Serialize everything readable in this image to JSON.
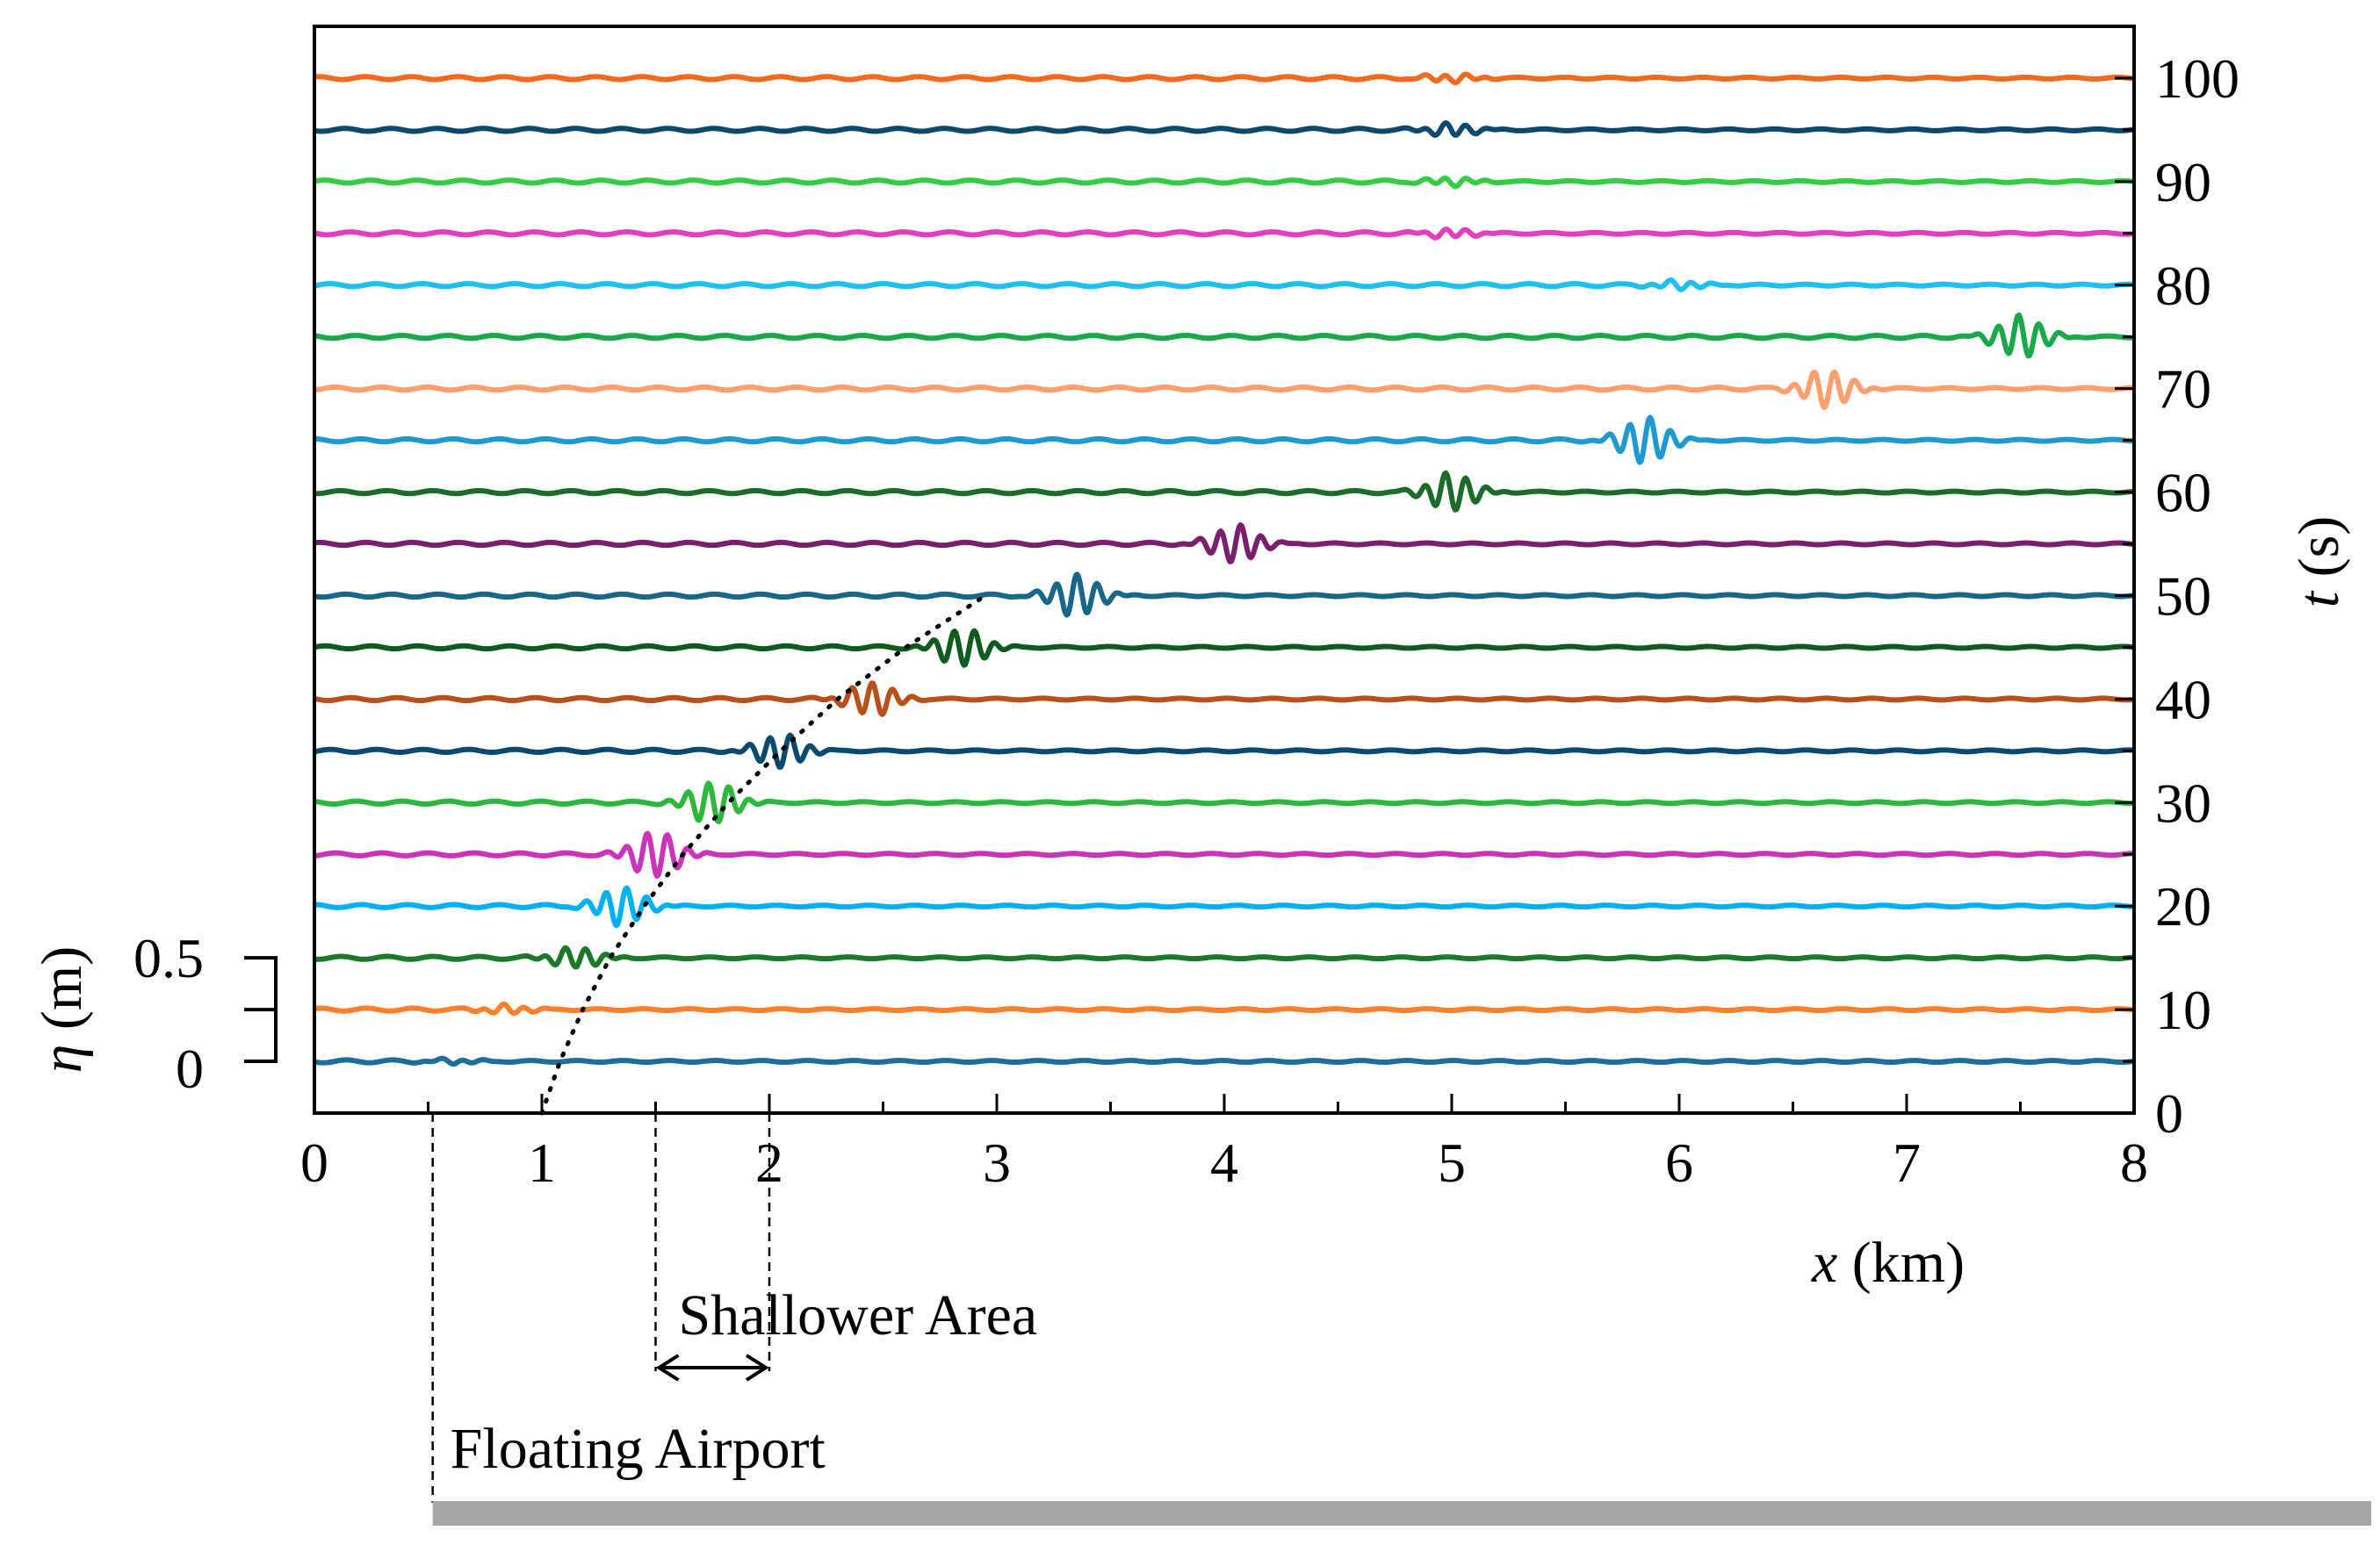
{
  "chart_data": {
    "type": "line",
    "title": "",
    "xlabel_var": "x",
    "xlabel_unit": " (km)",
    "ylabel_right_var": "t",
    "ylabel_right_unit": " (s)",
    "eta_label_var": "η",
    "eta_label_unit": " (m)",
    "xlim": [
      0,
      8
    ],
    "ylim_right": [
      0,
      105
    ],
    "x_ticks": [
      0,
      1,
      2,
      3,
      4,
      5,
      6,
      7,
      8
    ],
    "x_tick_labels": [
      "0",
      "1",
      "2",
      "3",
      "4",
      "5",
      "6",
      "7",
      "8"
    ],
    "right_ticks": [
      0,
      10,
      20,
      30,
      40,
      50,
      60,
      70,
      80,
      90,
      100
    ],
    "right_tick_labels": [
      "0",
      "10",
      "20",
      "30",
      "40",
      "50",
      "60",
      "70",
      "80",
      "90",
      "100"
    ],
    "eta_scale": {
      "values": [
        0,
        0.5
      ],
      "labels": [
        "0",
        "0.5"
      ]
    },
    "grid": false,
    "series": [
      {
        "t": 5,
        "color": "#1f6e9a",
        "packet_center_km": 0.62,
        "packet_amp_m": 0.01
      },
      {
        "t": 10,
        "color": "#ff7f2a",
        "packet_center_km": 0.85,
        "packet_amp_m": 0.02
      },
      {
        "t": 15,
        "color": "#1a7a2a",
        "packet_center_km": 1.15,
        "packet_amp_m": 0.05
      },
      {
        "t": 20,
        "color": "#00b0f0",
        "packet_center_km": 1.35,
        "packet_amp_m": 0.09
      },
      {
        "t": 25,
        "color": "#cc33bb",
        "packet_center_km": 1.5,
        "packet_amp_m": 0.11
      },
      {
        "t": 30,
        "color": "#2db83d",
        "packet_center_km": 1.75,
        "packet_amp_m": 0.1
      },
      {
        "t": 35,
        "color": "#0b4a6e",
        "packet_center_km": 2.05,
        "packet_amp_m": 0.08
      },
      {
        "t": 40,
        "color": "#b8501a",
        "packet_center_km": 2.45,
        "packet_amp_m": 0.08
      },
      {
        "t": 45,
        "color": "#0f5a1f",
        "packet_center_km": 2.85,
        "packet_amp_m": 0.09
      },
      {
        "t": 50,
        "color": "#1a6688",
        "packet_center_km": 3.35,
        "packet_amp_m": 0.1
      },
      {
        "t": 55,
        "color": "#7a1f6e",
        "packet_center_km": 4.05,
        "packet_amp_m": 0.09
      },
      {
        "t": 60,
        "color": "#1d6b28",
        "packet_center_km": 5.0,
        "packet_amp_m": 0.09
      },
      {
        "t": 65,
        "color": "#1e9ad0",
        "packet_center_km": 5.85,
        "packet_amp_m": 0.11
      },
      {
        "t": 70,
        "color": "#ff9e6e",
        "packet_center_km": 6.65,
        "packet_amp_m": 0.09
      },
      {
        "t": 75,
        "color": "#1aa84b",
        "packet_center_km": 7.5,
        "packet_amp_m": 0.1
      },
      {
        "t": 80,
        "color": "#1ec0f0",
        "packet_center_km": 6.0,
        "packet_amp_m": 0.02
      },
      {
        "t": 85,
        "color": "#e040c0",
        "packet_center_km": 5.0,
        "packet_amp_m": 0.02
      },
      {
        "t": 90,
        "color": "#33cc44",
        "packet_center_km": 5.0,
        "packet_amp_m": 0.02
      },
      {
        "t": 95,
        "color": "#0b4a6e",
        "packet_center_km": 5.0,
        "packet_amp_m": 0.03
      },
      {
        "t": 100,
        "color": "#f06b1f",
        "packet_center_km": 5.0,
        "packet_amp_m": 0.02
      }
    ],
    "front_curve": {
      "style": "dotted",
      "points": [
        [
          1.0,
          0
        ],
        [
          1.08,
          5
        ],
        [
          1.18,
          10
        ],
        [
          1.3,
          15
        ],
        [
          1.45,
          20
        ],
        [
          1.62,
          25
        ],
        [
          1.82,
          30
        ],
        [
          2.05,
          35
        ],
        [
          2.3,
          40
        ],
        [
          2.6,
          45
        ],
        [
          2.95,
          50
        ]
      ]
    },
    "annotations": {
      "shallower_area": {
        "label": "Shallower Area",
        "x_start_km": 1.5,
        "x_end_km": 2.0
      },
      "floating_airport": {
        "label": "Floating Airport",
        "x_start_km": 0.52
      }
    }
  }
}
